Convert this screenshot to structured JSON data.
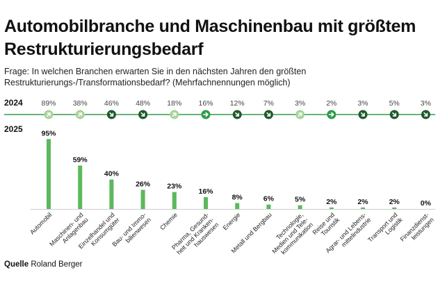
{
  "title": "Automobilbranche und Maschinenbau mit größtem Restrukturierungsbedarf",
  "question": "Frage: In welchen Branchen erwarten Sie in den nächsten Jahren den größten Restrukturierungs-/Transformationsbedarf? (Mehrfachnennungen möglich)",
  "source": {
    "label": "Quelle",
    "name": "Roland Berger"
  },
  "colors": {
    "bar": "#5cb85c",
    "line": "#2e9e48",
    "up_light": "#a8d49a",
    "flat": "#2f9a4a",
    "down_dark": "#1f5a2c",
    "text": "#111111"
  },
  "chart_data": {
    "type": "bar",
    "series": [
      {
        "name": "2025",
        "values": [
          95,
          59,
          40,
          26,
          23,
          16,
          8,
          6,
          5,
          2,
          2,
          2,
          0
        ]
      },
      {
        "name": "2024",
        "values": [
          89,
          38,
          46,
          48,
          18,
          16,
          12,
          7,
          3,
          2,
          3,
          5,
          3
        ]
      }
    ],
    "value_labels_2025": [
      "95%",
      "59%",
      "40%",
      "26%",
      "23%",
      "16%",
      "8%",
      "6%",
      "5%",
      "2%",
      "2%",
      "2%",
      "0%"
    ],
    "value_labels_2024": [
      "89%",
      "38%",
      "46%",
      "48%",
      "18%",
      "16%",
      "12%",
      "7%",
      "3%",
      "2%",
      "3%",
      "5%",
      "3%"
    ],
    "trend_2024": [
      "up",
      "up",
      "down",
      "down",
      "up",
      "flat",
      "down",
      "down",
      "up",
      "flat",
      "down",
      "down",
      "down"
    ],
    "categories": [
      "Automobil",
      "Maschinen- und Anlagenbau",
      "Einzelhandel und Konsumgüter",
      "Bau- und Immo- bilienwesen",
      "Chemie",
      "Pharma, Gesund- heit und Kranken- hauswesen",
      "Energie",
      "Metall und Bergbau",
      "Technologie, Medien und Tele- kommunikation",
      "Reise und Touristik",
      "Agrar- und Lebens- mittelindustrie",
      "Transport und Logistik",
      "Finanzdienst- leistungen"
    ],
    "category_lines": [
      [
        "Automobil"
      ],
      [
        "Maschinen- und",
        "Anlagenbau"
      ],
      [
        "Einzelhandel und",
        "Konsumgüter"
      ],
      [
        "Bau- und Immo-",
        "bilienwesen"
      ],
      [
        "Chemie"
      ],
      [
        "Pharma, Gesund-",
        "heit und Kranken-",
        "hauswesen"
      ],
      [
        "Energie"
      ],
      [
        "Metall und Bergbau"
      ],
      [
        "Technologie,",
        "Medien und Tele-",
        "kommunikation"
      ],
      [
        "Reise und",
        "Touristik"
      ],
      [
        "Agrar- und Lebens-",
        "mittelindustrie"
      ],
      [
        "Transport und",
        "Logistik"
      ],
      [
        "Finanzdienst-",
        "leistungen"
      ]
    ],
    "ylim": [
      0,
      100
    ],
    "grid": false,
    "legend": "none"
  }
}
